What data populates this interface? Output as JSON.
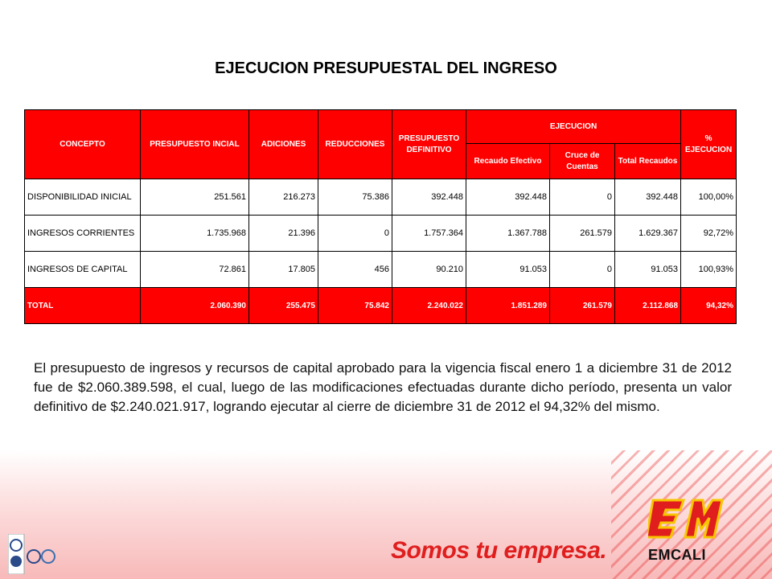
{
  "title": "EJECUCION PRESUPUESTAL DEL INGRESO",
  "table": {
    "headers": {
      "concepto": "CONCEPTO",
      "presupuesto_inicial": "PRESUPUESTO INCIAL",
      "adiciones": "ADICIONES",
      "reducciones": "REDUCCIONES",
      "presupuesto_definitivo": "PRESUPUESTO DEFINITIVO",
      "ejecucion": "EJECUCION",
      "recaudo_efectivo": "Recaudo Efectivo",
      "cruce_cuentas": "Cruce de Cuentas",
      "total_recaudos": "Total Recaudos",
      "pct_ejecucion": "% EJECUCION"
    },
    "rows": [
      [
        "DISPONIBILIDAD INICIAL",
        "251.561",
        "216.273",
        "75.386",
        "392.448",
        "392.448",
        "0",
        "392.448",
        "100,00%"
      ],
      [
        "INGRESOS CORRIENTES",
        "1.735.968",
        "21.396",
        "0",
        "1.757.364",
        "1.367.788",
        "261.579",
        "1.629.367",
        "92,72%"
      ],
      [
        "INGRESOS DE CAPITAL",
        "72.861",
        "17.805",
        "456",
        "90.210",
        "91.053",
        "0",
        "91.053",
        "100,93%"
      ]
    ],
    "total": [
      "TOTAL",
      "2.060.390",
      "255.475",
      "75.842",
      "2.240.022",
      "1.851.289",
      "261.579",
      "2.112.868",
      "94,32%"
    ]
  },
  "paragraph": "El presupuesto de ingresos y recursos de capital aprobado para la vigencia fiscal enero 1 a diciembre 31 de 2012 fue de $2.060.389.598, el cual, luego de las modificaciones efectuadas durante dicho período, presenta un valor definitivo de $2.240.021.917, logrando ejecutar al cierre de diciembre 31 de 2012 el 94,32% del mismo.",
  "footer": {
    "slogan": "Somos tu empresa.",
    "brand": "EMCALI",
    "logo_icon": "emcali-em-logo",
    "cert_icon": "certification-logos",
    "accent_color": "#e01e1e"
  }
}
